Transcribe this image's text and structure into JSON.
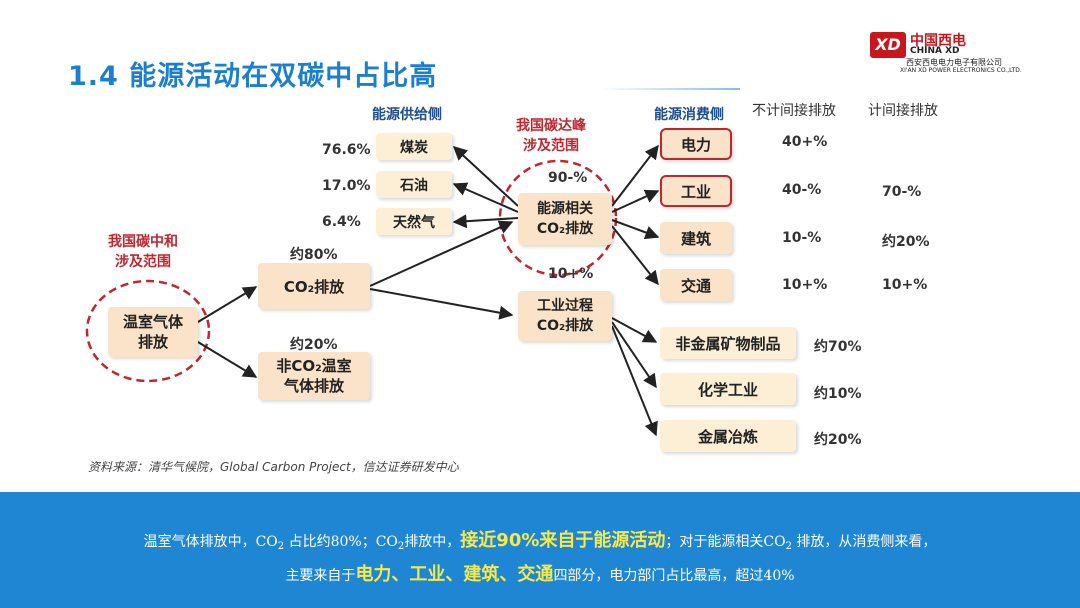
{
  "header": {
    "title": "1.4  能源活动在双碳中占比高"
  },
  "logo": {
    "mark": "XD",
    "name_cn": "中国西电",
    "name_en": "CHINA XD",
    "company_cn": "西安西电电力电子有限公司",
    "company_en": "XI'AN XD POWER ELECTRONICS CO.,LTD."
  },
  "diagram": {
    "neutral_scope": "我国碳中和\n涉及范围",
    "ghg": "温室气体\n排放",
    "co2_share": "约80%",
    "co2": "CO₂排放",
    "nonco2_share": "约20%",
    "nonco2": "非CO₂温室\n气体排放",
    "supply_header": "能源供给侧",
    "supply": [
      {
        "pct": "76.6%",
        "label": "煤炭"
      },
      {
        "pct": "17.0%",
        "label": "石油"
      },
      {
        "pct": "6.4%",
        "label": "天然气"
      }
    ],
    "peak_scope": "我国碳达峰\n涉及范围",
    "energy_share": "90-%",
    "energy": "能源相关\nCO₂排放",
    "industry_share": "10+%",
    "industry_process": "工业过程\nCO₂排放",
    "consume_header": "能源消费侧",
    "col_direct": "不计间接排放",
    "col_indirect": "计间接排放",
    "consume": [
      {
        "label": "电力",
        "direct": "40+%",
        "indirect": ""
      },
      {
        "label": "工业",
        "direct": "40-%",
        "indirect": "70-%"
      },
      {
        "label": "建筑",
        "direct": "10-%",
        "indirect": "约20%"
      },
      {
        "label": "交通",
        "direct": "10+%",
        "indirect": "10+%"
      }
    ],
    "process": [
      {
        "label": "非金属矿物制品",
        "pct": "约70%"
      },
      {
        "label": "化学工业",
        "pct": "约10%"
      },
      {
        "label": "金属冶炼",
        "pct": "约20%"
      }
    ]
  },
  "source": "资料来源：清华气候院，Global Carbon Project，信达证券研发中心",
  "footer": {
    "l1_a": "温室气体排放中，CO",
    "l1_sub": "2",
    "l1_b": " 占比约80%；CO",
    "l1_sub2": "2",
    "l1_c": "排放中，",
    "l1_hl": "接近90%来自于能源活动",
    "l1_d": "；对于能源相关CO",
    "l1_sub3": "2",
    "l1_e": " 排放，从消费侧来看，",
    "l2_a": "主要来自于",
    "l2_hl": "电力、工业、建筑、交通",
    "l2_b": "四部分，电力部门占比最高，超过40%"
  }
}
